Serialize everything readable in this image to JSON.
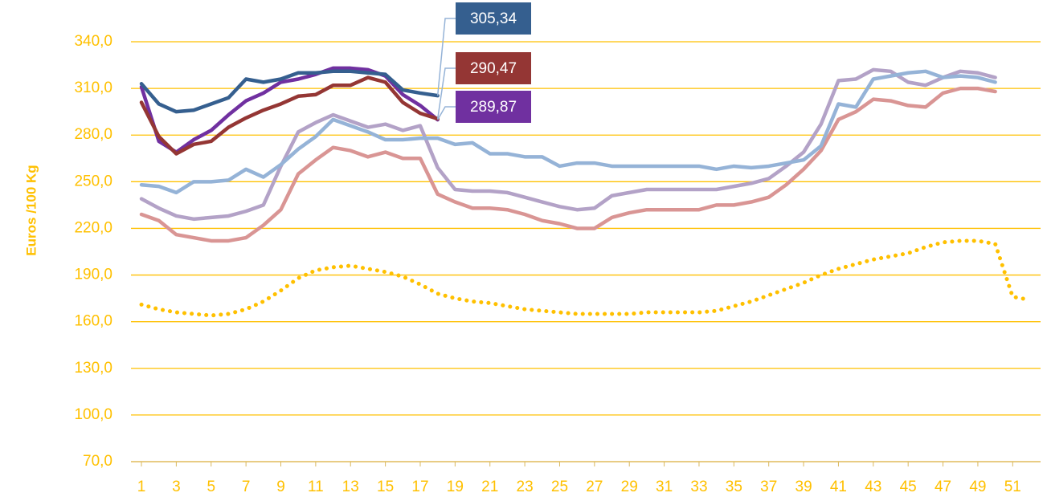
{
  "chart_data": {
    "type": "line",
    "y_label": "Euros /100 Kg",
    "x": [
      1,
      2,
      3,
      4,
      5,
      6,
      7,
      8,
      9,
      10,
      11,
      12,
      13,
      14,
      15,
      16,
      17,
      18,
      19,
      20,
      21,
      22,
      23,
      24,
      25,
      26,
      27,
      28,
      29,
      30,
      31,
      32,
      33,
      34,
      35,
      36,
      37,
      38,
      39,
      40,
      41,
      42,
      43,
      44,
      45,
      46,
      47,
      48,
      49,
      50,
      51,
      52
    ],
    "xlim": [
      0.4,
      52.6
    ],
    "xticks": [
      1,
      3,
      5,
      7,
      9,
      11,
      13,
      15,
      17,
      19,
      21,
      23,
      25,
      27,
      29,
      31,
      33,
      35,
      37,
      39,
      41,
      43,
      45,
      47,
      49,
      51
    ],
    "ylim": [
      70,
      340
    ],
    "yticks": [
      {
        "value": 70,
        "label": "70,0"
      },
      {
        "value": 100,
        "label": "100,0"
      },
      {
        "value": 130,
        "label": "130,0"
      },
      {
        "value": 160,
        "label": "160,0"
      },
      {
        "value": 190,
        "label": "190,0"
      },
      {
        "value": 220,
        "label": "220,0"
      },
      {
        "value": 250,
        "label": "250,0"
      },
      {
        "value": 280,
        "label": "280,0"
      },
      {
        "value": 310,
        "label": "310,0"
      },
      {
        "value": 340,
        "label": "340,0"
      }
    ],
    "grid": true,
    "series": [
      {
        "color": "#ffc000",
        "dotted": true,
        "values": [
          171,
          168,
          166,
          165,
          164,
          165,
          168,
          173,
          180,
          188,
          193,
          195,
          196,
          194,
          192,
          189,
          184,
          178,
          175,
          173,
          172,
          170,
          168,
          167,
          166,
          165,
          165,
          165,
          165,
          166,
          166,
          166,
          166,
          167,
          170,
          173,
          177,
          181,
          185,
          190,
          194,
          197,
          200,
          202,
          204,
          208,
          211,
          212,
          212,
          210,
          176,
          174
        ]
      },
      {
        "color": "#d99594",
        "values": [
          229,
          225,
          216,
          214,
          212,
          212,
          214,
          222,
          232,
          255,
          264,
          272,
          270,
          266,
          269,
          265,
          265,
          242,
          237,
          233,
          233,
          232,
          229,
          225,
          223,
          220,
          220,
          227,
          230,
          232,
          232,
          232,
          232,
          235,
          235,
          237,
          240,
          248,
          258,
          270,
          290,
          295,
          303,
          302,
          299,
          298,
          307,
          310,
          310,
          308,
          null,
          null
        ]
      },
      {
        "color": "#b3a2c7",
        "values": [
          239,
          233,
          228,
          226,
          227,
          228,
          231,
          235,
          260,
          282,
          288,
          293,
          289,
          285,
          287,
          283,
          286,
          259,
          245,
          244,
          244,
          243,
          240,
          237,
          234,
          232,
          233,
          241,
          243,
          245,
          245,
          245,
          245,
          245,
          247,
          249,
          252,
          260,
          269,
          287,
          315,
          316,
          322,
          321,
          314,
          312,
          317,
          321,
          320,
          317,
          null,
          null
        ]
      },
      {
        "color": "#95b3d7",
        "values": [
          248,
          247,
          243,
          250,
          250,
          251,
          258,
          253,
          261,
          271,
          279,
          290,
          286,
          282,
          277,
          277,
          278,
          278,
          274,
          275,
          268,
          268,
          266,
          266,
          260,
          262,
          262,
          260,
          260,
          260,
          260,
          260,
          260,
          258,
          260,
          259,
          260,
          262,
          264,
          273,
          300,
          298,
          316,
          318,
          320,
          321,
          317,
          318,
          317,
          314,
          null,
          null
        ]
      },
      {
        "color": "#7030a0",
        "values": [
          311,
          276,
          269,
          277,
          283,
          293,
          302,
          307,
          314,
          316,
          319,
          323,
          323,
          322,
          318,
          306,
          299,
          289.87,
          null,
          null,
          null,
          null,
          null,
          null,
          null,
          null,
          null,
          null,
          null,
          null,
          null,
          null,
          null,
          null,
          null,
          null,
          null,
          null,
          null,
          null,
          null,
          null,
          null,
          null,
          null,
          null,
          null,
          null,
          null,
          null,
          null,
          null
        ],
        "value_labels": [
          null,
          null,
          null,
          null,
          null,
          null,
          null,
          null,
          null,
          null,
          null,
          null,
          null,
          null,
          null,
          null,
          null,
          "289,87",
          null,
          null,
          null,
          null,
          null,
          null,
          null,
          null,
          null,
          null,
          null,
          null,
          null,
          null,
          null,
          null,
          null,
          null,
          null,
          null,
          null,
          null,
          null,
          null,
          null,
          null,
          null,
          null,
          null,
          null,
          null,
          null,
          null,
          null
        ]
      },
      {
        "color": "#943634",
        "values": [
          301,
          279,
          268,
          274,
          276,
          285,
          291,
          296,
          300,
          305,
          306,
          312,
          312,
          317,
          314,
          301,
          294,
          290.47,
          null,
          null,
          null,
          null,
          null,
          null,
          null,
          null,
          null,
          null,
          null,
          null,
          null,
          null,
          null,
          null,
          null,
          null,
          null,
          null,
          null,
          null,
          null,
          null,
          null,
          null,
          null,
          null,
          null,
          null,
          null,
          null,
          null,
          null
        ],
        "value_labels": [
          null,
          null,
          null,
          null,
          null,
          null,
          null,
          null,
          null,
          null,
          null,
          null,
          null,
          null,
          null,
          null,
          null,
          "290,47",
          null,
          null,
          null,
          null,
          null,
          null,
          null,
          null,
          null,
          null,
          null,
          null,
          null,
          null,
          null,
          null,
          null,
          null,
          null,
          null,
          null,
          null,
          null,
          null,
          null,
          null,
          null,
          null,
          null,
          null,
          null,
          null,
          null,
          null
        ]
      },
      {
        "color": "#355f8f",
        "values": [
          313,
          300,
          295,
          296,
          300,
          304,
          316,
          314,
          316,
          320,
          320,
          321,
          321,
          320,
          319,
          309,
          307,
          305.34,
          null,
          null,
          null,
          null,
          null,
          null,
          null,
          null,
          null,
          null,
          null,
          null,
          null,
          null,
          null,
          null,
          null,
          null,
          null,
          null,
          null,
          null,
          null,
          null,
          null,
          null,
          null,
          null,
          null,
          null,
          null,
          null,
          null,
          null
        ],
        "value_labels": [
          null,
          null,
          null,
          null,
          null,
          null,
          null,
          null,
          null,
          null,
          null,
          null,
          null,
          null,
          null,
          null,
          null,
          "305,34",
          null,
          null,
          null,
          null,
          null,
          null,
          null,
          null,
          null,
          null,
          null,
          null,
          null,
          null,
          null,
          null,
          null,
          null,
          null,
          null,
          null,
          null,
          null,
          null,
          null,
          null,
          null,
          null,
          null,
          null,
          null,
          null,
          null,
          null
        ]
      }
    ]
  }
}
